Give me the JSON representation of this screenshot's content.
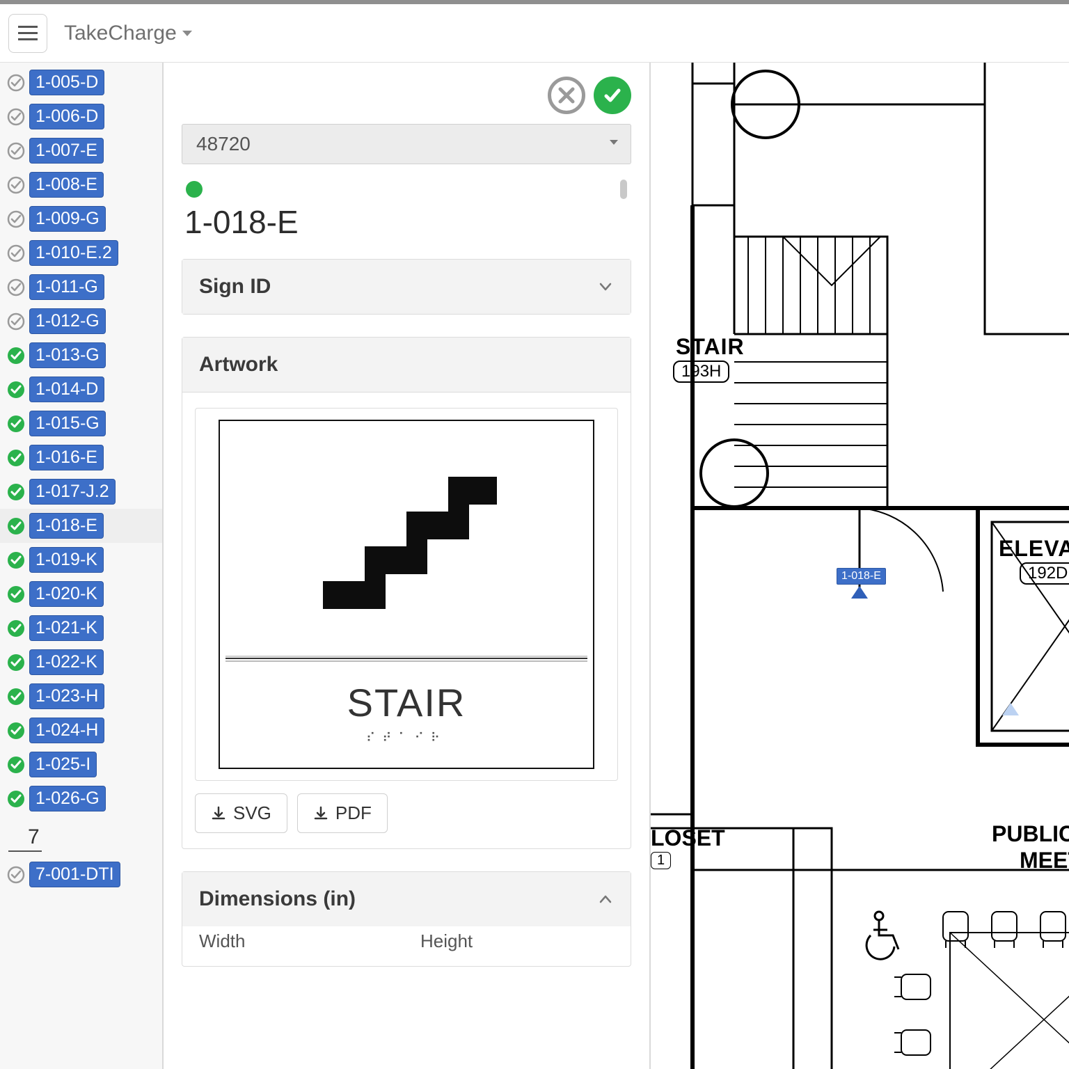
{
  "brand": "TakeCharge",
  "sidebar": {
    "section": "7",
    "items": [
      {
        "id": "1-005-D",
        "status": "open"
      },
      {
        "id": "1-006-D",
        "status": "open"
      },
      {
        "id": "1-007-E",
        "status": "open"
      },
      {
        "id": "1-008-E",
        "status": "open"
      },
      {
        "id": "1-009-G",
        "status": "open"
      },
      {
        "id": "1-010-E.2",
        "status": "open"
      },
      {
        "id": "1-011-G",
        "status": "open"
      },
      {
        "id": "1-012-G",
        "status": "open"
      },
      {
        "id": "1-013-G",
        "status": "done"
      },
      {
        "id": "1-014-D",
        "status": "done"
      },
      {
        "id": "1-015-G",
        "status": "done"
      },
      {
        "id": "1-016-E",
        "status": "done"
      },
      {
        "id": "1-017-J.2",
        "status": "done"
      },
      {
        "id": "1-018-E",
        "status": "done",
        "selected": true
      },
      {
        "id": "1-019-K",
        "status": "done"
      },
      {
        "id": "1-020-K",
        "status": "done"
      },
      {
        "id": "1-021-K",
        "status": "done"
      },
      {
        "id": "1-022-K",
        "status": "done"
      },
      {
        "id": "1-023-H",
        "status": "done"
      },
      {
        "id": "1-024-H",
        "status": "done"
      },
      {
        "id": "1-025-I",
        "status": "done"
      },
      {
        "id": "1-026-G",
        "status": "done"
      }
    ],
    "extra": [
      {
        "id": "7-001-DTI",
        "status": "open"
      }
    ]
  },
  "detail": {
    "select_value": "48720",
    "title": "1-018-E",
    "panels": {
      "sign_id": {
        "label": "Sign ID",
        "expanded": false
      },
      "artwork": {
        "label": "Artwork",
        "expanded": true
      },
      "dimensions": {
        "label": "Dimensions (in)",
        "expanded": true,
        "width_label": "Width",
        "height_label": "Height"
      }
    },
    "download": {
      "svg": "SVG",
      "pdf": "PDF"
    },
    "sign_preview": {
      "text": "STAIR",
      "braille": "⠎⠞⠁⠊⠗",
      "icon": "stairs"
    }
  },
  "plan": {
    "labels": {
      "stair": "STAIR",
      "stair_room": "193H",
      "elevator": "ELEVAT",
      "elevator_room": "192D",
      "closet": "LOSET",
      "public": "PUBLIC",
      "meet": "MEET"
    },
    "tag": "1-018-E",
    "colors": {
      "wall": "#000000",
      "tag_bg": "#3d6fc8",
      "marker": "#2f5fb8",
      "marker_faint": "#bcd2f2"
    }
  },
  "colors": {
    "badge_bg": "#3d6fc8",
    "done": "#2bb24c",
    "open": "#9a9a9a",
    "panel_bg": "#f3f3f3",
    "border": "#dcdcdc"
  }
}
